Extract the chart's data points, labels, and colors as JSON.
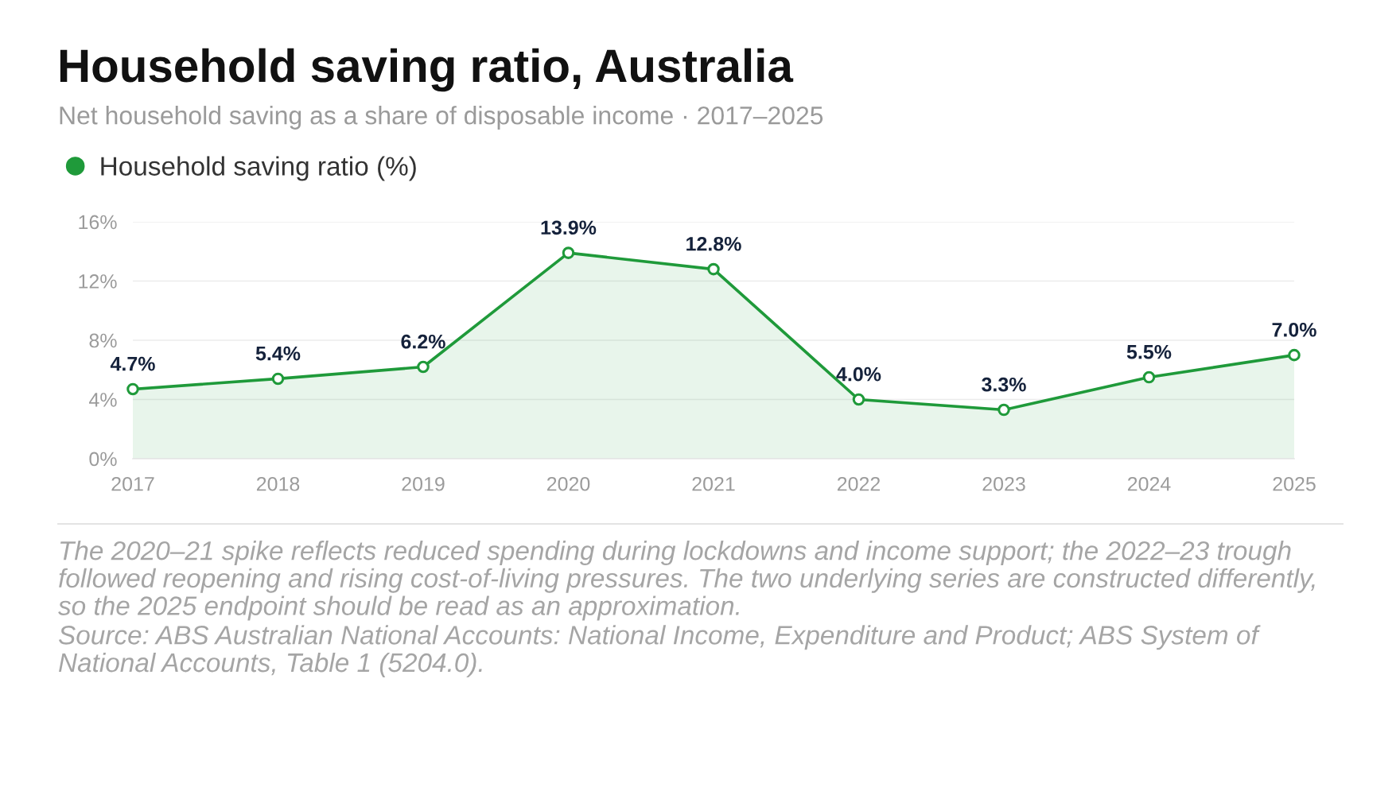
{
  "chart_data": {
    "type": "area",
    "title": "Household saving ratio, Australia",
    "subtitle": "Net household saving as a share of disposable income · 2017–2025",
    "categories": [
      "2017",
      "2018",
      "2019",
      "2020",
      "2021",
      "2022",
      "2023",
      "2024",
      "2025"
    ],
    "series": [
      {
        "name": "Household saving ratio (%)",
        "color": "#1f9a3a",
        "values": [
          4.7,
          5.4,
          6.2,
          13.9,
          12.8,
          4.0,
          3.3,
          5.5,
          7.0
        ],
        "value_labels": [
          "4.7%",
          "5.4%",
          "6.2%",
          "13.9%",
          "12.8%",
          "4.0%",
          "3.3%",
          "5.5%",
          "7.0%"
        ]
      }
    ],
    "ylim": [
      0,
      16
    ],
    "yticks": [
      {
        "value": 0,
        "label": "0%"
      },
      {
        "value": 4,
        "label": "4%"
      },
      {
        "value": 8,
        "label": "8%"
      },
      {
        "value": 12,
        "label": "12%"
      },
      {
        "value": 16,
        "label": "16%"
      }
    ],
    "grid": "y",
    "legend": "top left",
    "marker": "circle",
    "line_style": "solid",
    "annotations": [
      "The 2020–21 spike reflects reduced spending during lockdowns and income support; the 2022–23 trough followed reopening and rising cost-of-living pressures. The two underlying series are constructed differently, so the 2025 endpoint should be read as an approximation.",
      "Source: ABS Australian National Accounts: National Income, Expenditure and Product; ABS System of National Accounts, Table 1 (5204.0)."
    ]
  }
}
